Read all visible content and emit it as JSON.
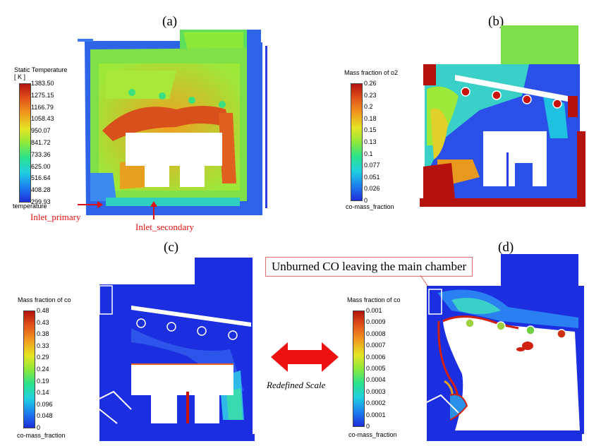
{
  "panels": {
    "a": {
      "label": "(a)",
      "colorbar_title": "Static Temperature\n[ K ]",
      "colorbar_title_line1": "Static Temperature",
      "colorbar_title_line2": "[ K ]",
      "ticks": [
        "1383.50",
        "1275.15",
        "1166.79",
        "1058.43",
        "950.07",
        "841.72",
        "733.36",
        "625.00",
        "516.64",
        "408.28",
        "299.93"
      ],
      "footer": "temperature",
      "inlet_primary": "Inlet_primary",
      "inlet_secondary": "Inlet_secondary"
    },
    "b": {
      "label": "(b)",
      "colorbar_title": "Mass fraction of o2",
      "ticks": [
        "0.26",
        "0.23",
        "0.2",
        "0.18",
        "0.15",
        "0.13",
        "0.1",
        "0.077",
        "0.051",
        "0.026",
        "0"
      ],
      "footer": "co-mass_fraction"
    },
    "c": {
      "label": "(c)",
      "colorbar_title": "Mass fraction of co",
      "ticks": [
        "0.48",
        "0.43",
        "0.38",
        "0.33",
        "0.29",
        "0.24",
        "0.19",
        "0.14",
        "0.096",
        "0.048",
        "0"
      ],
      "footer": "co-mass_fraction"
    },
    "d": {
      "label": "(d)",
      "colorbar_title": "Mass fraction of co",
      "ticks": [
        "0.001",
        "0.0009",
        "0.0008",
        "0.0007",
        "0.0006",
        "0.0005",
        "0.0004",
        "0.0003",
        "0.0002",
        "0.0001",
        "0"
      ],
      "footer": "co-mass_fraction"
    }
  },
  "annotations": {
    "unburned": "Unburned CO leaving the main chamber",
    "redefined": "Redefined Scale"
  },
  "colors": {
    "accent_red": "#e01010",
    "arrow_red": "#ee1111",
    "co_blue": "#1b2ee0"
  }
}
